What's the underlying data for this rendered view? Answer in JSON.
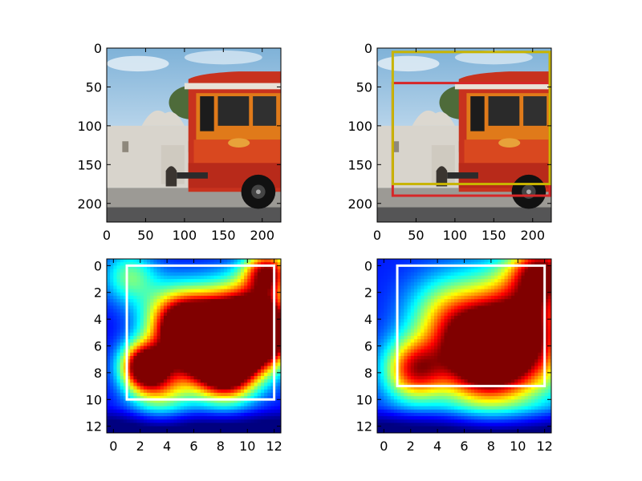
{
  "figure": {
    "background": "#ffffff"
  },
  "chart_data": [
    {
      "type": "image",
      "panel": "top-left",
      "image": "photo of a red and orange trolley bus in front of a white mission building with blue sky",
      "x_ticks": [
        "0",
        "50",
        "100",
        "150",
        "200"
      ],
      "y_ticks": [
        "0",
        "50",
        "100",
        "150",
        "200"
      ],
      "xlim": [
        0,
        224
      ],
      "ylim": [
        224,
        0
      ],
      "boxes": []
    },
    {
      "type": "image",
      "panel": "top-right",
      "image": "same trolley photo with two bounding boxes",
      "x_ticks": [
        "0",
        "50",
        "100",
        "150",
        "200"
      ],
      "y_ticks": [
        "0",
        "50",
        "100",
        "150",
        "200"
      ],
      "xlim": [
        0,
        224
      ],
      "ylim": [
        224,
        0
      ],
      "boxes": [
        {
          "color": "#d62728",
          "x0": 20,
          "y0": 45,
          "x1": 222,
          "y1": 190
        },
        {
          "color": "#c8b400",
          "x0": 20,
          "y0": 5,
          "x1": 222,
          "y1": 175
        }
      ]
    },
    {
      "type": "heatmap",
      "panel": "bottom-left",
      "colormap": "jet",
      "x_ticks": [
        "0",
        "2",
        "4",
        "6",
        "8",
        "10",
        "12"
      ],
      "y_ticks": [
        "0",
        "2",
        "4",
        "6",
        "8",
        "10",
        "12"
      ],
      "xlim": [
        -0.5,
        12.5
      ],
      "ylim": [
        12.5,
        -0.5
      ],
      "hotspots": [
        {
          "x": 9.5,
          "y": 4.5,
          "w": 2.2,
          "strength": 1.0
        },
        {
          "x": 11.3,
          "y": 5.0,
          "w": 1.6,
          "strength": 0.9
        },
        {
          "x": 7.5,
          "y": 6.2,
          "w": 2.0,
          "strength": 0.95
        },
        {
          "x": 5.6,
          "y": 5.0,
          "w": 1.6,
          "strength": 0.75
        },
        {
          "x": 2.3,
          "y": 7.5,
          "w": 1.2,
          "strength": 0.95
        },
        {
          "x": 8.5,
          "y": 8.0,
          "w": 1.5,
          "strength": 0.65
        },
        {
          "x": 4.5,
          "y": 3.8,
          "w": 1.8,
          "strength": 0.45
        },
        {
          "x": 11.5,
          "y": 0.5,
          "w": 1.2,
          "strength": 0.8
        },
        {
          "x": 1.2,
          "y": 0.8,
          "w": 1.4,
          "strength": 0.35
        },
        {
          "x": 3.5,
          "y": 9.0,
          "w": 1.6,
          "strength": 0.45
        }
      ],
      "base": 0.12,
      "boxes": [
        {
          "color": "#ffffff",
          "x0": 1,
          "y0": 0,
          "x1": 12,
          "y1": 10
        }
      ]
    },
    {
      "type": "heatmap",
      "panel": "bottom-right",
      "colormap": "jet",
      "x_ticks": [
        "0",
        "2",
        "4",
        "6",
        "8",
        "10",
        "12"
      ],
      "y_ticks": [
        "0",
        "2",
        "4",
        "6",
        "8",
        "10",
        "12"
      ],
      "xlim": [
        -0.5,
        12.5
      ],
      "ylim": [
        12.5,
        -0.5
      ],
      "hotspots": [
        {
          "x": 9.7,
          "y": 5.2,
          "w": 3.0,
          "strength": 1.0
        },
        {
          "x": 7.2,
          "y": 7.0,
          "w": 2.2,
          "strength": 0.75
        },
        {
          "x": 2.3,
          "y": 7.8,
          "w": 1.6,
          "strength": 0.7
        },
        {
          "x": 11.8,
          "y": 0.5,
          "w": 1.6,
          "strength": 0.75
        },
        {
          "x": 4.5,
          "y": 3.8,
          "w": 2.0,
          "strength": 0.35
        }
      ],
      "base": 0.15,
      "boxes": [
        {
          "color": "#ffffff",
          "x0": 1,
          "y0": 0,
          "x1": 12,
          "y1": 9
        }
      ]
    }
  ]
}
